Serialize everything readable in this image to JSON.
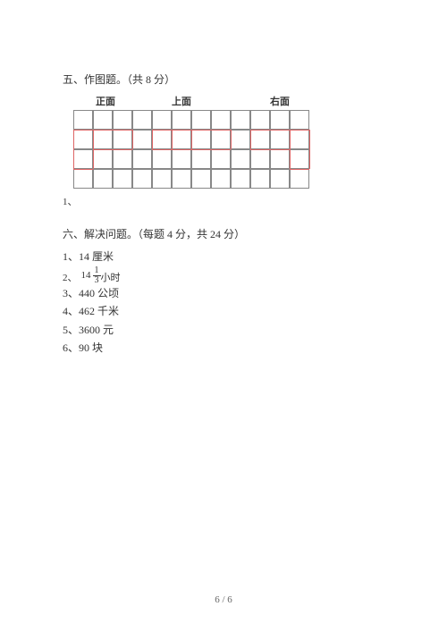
{
  "section5": {
    "header": "五、作图题。（共  8 分）",
    "labels": {
      "front": "正面",
      "top": "上面",
      "side": "右面"
    },
    "item_number": "1、",
    "grid": {
      "cols": 12,
      "rows": 4,
      "cell_size": 22,
      "border_color": "#888888",
      "shape_color": "#dd6666"
    }
  },
  "section6": {
    "header": "六、解决问题。（每题  4 分，共 24 分）",
    "answers": [
      {
        "num": "1、",
        "text": "14 厘米"
      },
      {
        "num": "2、",
        "whole": "14",
        "frac_num": "1",
        "frac_den": "3",
        "unit": "小时"
      },
      {
        "num": "3、",
        "text": "440 公顷"
      },
      {
        "num": "4、",
        "text": "462 千米"
      },
      {
        "num": "5、",
        "text": "3600 元"
      },
      {
        "num": "6、",
        "text": "90 块"
      }
    ]
  },
  "page_number": "6 / 6"
}
